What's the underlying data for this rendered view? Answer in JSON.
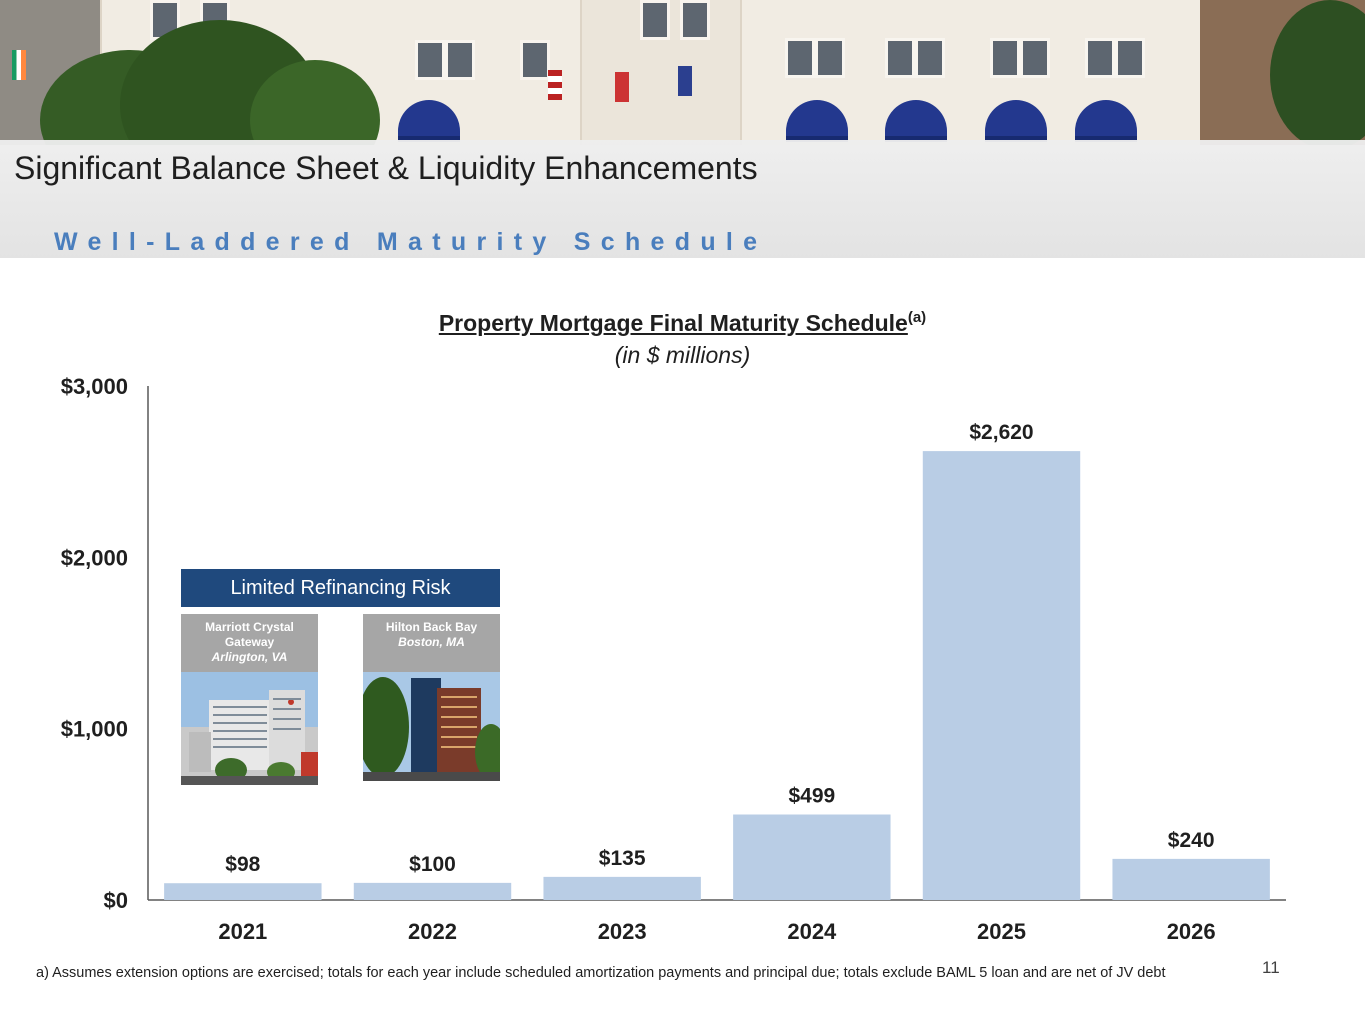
{
  "header": {
    "title": "Significant Balance Sheet & Liquidity Enhancements",
    "subtitle": "Well-Laddered Maturity Schedule"
  },
  "chart_data": {
    "type": "bar",
    "title": "Property Mortgage Final Maturity Schedule",
    "title_superscript": "(a)",
    "subtitle": "(in $ millions)",
    "xlabel": "",
    "ylabel": "",
    "categories": [
      "2021",
      "2022",
      "2023",
      "2024",
      "2025",
      "2026"
    ],
    "values": [
      98,
      100,
      135,
      499,
      2620,
      240
    ],
    "value_labels": [
      "$98",
      "$100",
      "$135",
      "$499",
      "$2,620",
      "$240"
    ],
    "ylim": [
      0,
      3000
    ],
    "y_ticks": [
      0,
      1000,
      2000,
      3000
    ],
    "y_tick_labels": [
      "$0",
      "$1,000",
      "$2,000",
      "$3,000"
    ],
    "grid": false,
    "legend": "none",
    "bar_color": "#b9cde5"
  },
  "overlay": {
    "banner": "Limited Refinancing Risk",
    "properties": [
      {
        "name": "Marriott Crystal Gateway",
        "location": "Arlington, VA"
      },
      {
        "name": "Hilton Back Bay",
        "location": "Boston, MA"
      }
    ]
  },
  "footnote": "a) Assumes extension options are exercised; totals for each year include scheduled amortization payments and principal due; totals exclude BAML 5 loan and are net of JV debt",
  "page_number": "11",
  "colors": {
    "accent_blue": "#4a7ebd",
    "banner_navy": "#1f497d",
    "label_gray": "#a6a6a6"
  }
}
